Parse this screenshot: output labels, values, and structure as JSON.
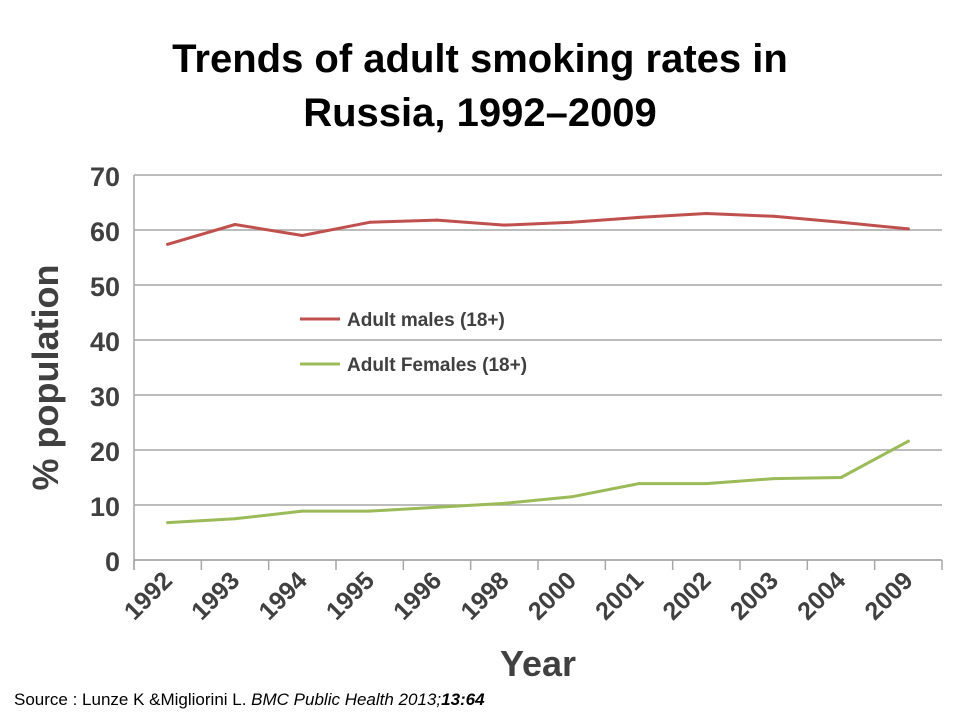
{
  "title": {
    "line1": "Trends of adult smoking rates in",
    "line2": "Russia, 1992–2009"
  },
  "chart_data": {
    "type": "line",
    "categories": [
      "1992",
      "1993",
      "1994",
      "1995",
      "1996",
      "1998",
      "2000",
      "2001",
      "2002",
      "2003",
      "2004",
      "2009"
    ],
    "series": [
      {
        "name": "Adult males (18+)",
        "color": "#c0504d",
        "values": [
          57.4,
          61.0,
          59.0,
          61.4,
          61.8,
          60.9,
          61.4,
          62.3,
          63.0,
          62.5,
          61.4,
          60.2
        ]
      },
      {
        "name": "Adult Females (18+)",
        "color": "#9bbb59",
        "values": [
          6.8,
          7.5,
          8.9,
          8.9,
          9.6,
          10.3,
          11.5,
          13.9,
          13.9,
          14.8,
          15.0,
          21.6
        ]
      }
    ],
    "xlabel": "Year",
    "ylabel": "% population",
    "ylim": [
      0,
      70
    ],
    "yticks": [
      0,
      10,
      20,
      30,
      40,
      50,
      60,
      70
    ],
    "grid": true,
    "legend_position": "middle-left"
  },
  "source": {
    "prefix": "Source : Lunze K &Migliorini L. ",
    "journal": "BMC Public Health 2013;",
    "volume": "13:64"
  }
}
